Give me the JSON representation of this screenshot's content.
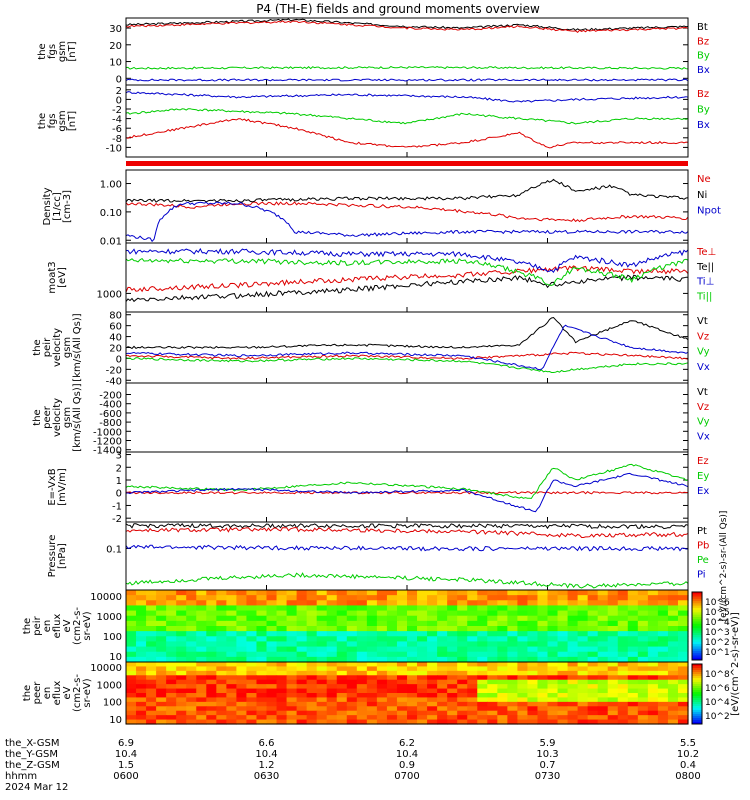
{
  "title": "P4 (TH-E) fields and ground moments overview",
  "colors": {
    "black": "#000000",
    "red": "#dd0000",
    "green": "#00cc00",
    "blue": "#0000cc"
  },
  "colorbar": {
    "label": "[eV/(cm^2-s)-sr-eV)]",
    "label_overlap": "[eV/(cm^2-s)-sr-(All Qs)]",
    "ticks_top": [
      "10^6",
      "10^5",
      "10^4",
      "10^3",
      "10^2",
      "10^1"
    ],
    "ticks_bottom": [
      "10^8",
      "10^6",
      "10^4",
      "10^2"
    ]
  },
  "orbit": {
    "rows": [
      {
        "label": "the_X-GSM",
        "values": [
          "6.9",
          "6.6",
          "6.2",
          "5.9",
          "5.5"
        ]
      },
      {
        "label": "the_Y-GSM",
        "values": [
          "10.4",
          "10.4",
          "10.4",
          "10.3",
          "10.2"
        ]
      },
      {
        "label": "the_Z-GSM",
        "values": [
          "1.5",
          "1.2",
          "0.9",
          "0.7",
          "0.4"
        ]
      },
      {
        "label": "hhmm",
        "values": [
          "0600",
          "0630",
          "0700",
          "0730",
          "0800"
        ]
      }
    ],
    "date": "2024 Mar 12"
  },
  "chart_data": [
    {
      "id": "p1",
      "type": "line",
      "ylabel": [
        "the",
        "fgs",
        "gsm",
        "[nT]"
      ],
      "ylim": [
        -4,
        36
      ],
      "yticks": [
        "30",
        "20",
        "10",
        "0"
      ],
      "ytickvals": [
        30,
        20,
        10,
        0
      ],
      "series": [
        {
          "name": "Bt",
          "color": "#000000",
          "x": [
            0,
            0.1,
            0.2,
            0.3,
            0.4,
            0.5,
            0.6,
            0.7,
            0.8,
            0.9,
            1
          ],
          "values": [
            32,
            33,
            34,
            35,
            33,
            31,
            30,
            32,
            29,
            30,
            31
          ]
        },
        {
          "name": "Bz",
          "color": "#dd0000",
          "x": [
            0,
            0.1,
            0.2,
            0.3,
            0.4,
            0.5,
            0.6,
            0.7,
            0.8,
            0.9,
            1
          ],
          "values": [
            31,
            32,
            33,
            34,
            32,
            30,
            29,
            31,
            28,
            29,
            30
          ]
        },
        {
          "name": "By",
          "color": "#00cc00",
          "x": [
            0,
            0.5,
            1
          ],
          "values": [
            6,
            6.5,
            6
          ]
        },
        {
          "name": "Bx",
          "color": "#0000cc",
          "x": [
            0,
            0.5,
            1
          ],
          "values": [
            -1,
            -1,
            -1
          ]
        }
      ]
    },
    {
      "id": "p2",
      "type": "line",
      "ylabel": [
        "the",
        "fgs",
        "gsm",
        "[nT]"
      ],
      "ylim": [
        -12,
        3
      ],
      "yticks": [
        "2",
        "0",
        "-2",
        "-4",
        "-6",
        "-8",
        "-10"
      ],
      "ytickvals": [
        2,
        0,
        -2,
        -4,
        -6,
        -8,
        -10
      ],
      "series": [
        {
          "name": "Bz",
          "color": "#dd0000",
          "x": [
            0,
            0.1,
            0.2,
            0.3,
            0.4,
            0.5,
            0.6,
            0.7,
            0.75,
            0.8,
            0.9,
            1
          ],
          "values": [
            -8,
            -6,
            -4,
            -6,
            -9,
            -10,
            -9,
            -7,
            -10,
            -9,
            -9,
            -9
          ]
        },
        {
          "name": "By",
          "color": "#00cc00",
          "x": [
            0,
            0.1,
            0.2,
            0.3,
            0.4,
            0.5,
            0.6,
            0.7,
            0.8,
            0.9,
            1
          ],
          "values": [
            -3,
            -2,
            -2.5,
            -3,
            -4,
            -5,
            -3,
            -4,
            -5,
            -4,
            -4
          ]
        },
        {
          "name": "Bx",
          "color": "#0000cc",
          "x": [
            0,
            0.2,
            0.4,
            0.6,
            0.7,
            0.8,
            1
          ],
          "values": [
            1.5,
            0.5,
            1,
            0.5,
            -0.5,
            0,
            0.5
          ]
        }
      ]
    },
    {
      "id": "p3",
      "type": "line",
      "ylabel": [
        "Density",
        "[1/cc]",
        "[cm-3]"
      ],
      "ylim": [
        0.008,
        3
      ],
      "scale": "log",
      "yticks": [
        "1.00",
        "0.10",
        "0.01"
      ],
      "ytickvals": [
        1,
        0.1,
        0.01
      ],
      "series": [
        {
          "name": "Ne",
          "color": "#dd0000",
          "x": [
            0,
            0.12,
            0.2,
            0.3,
            0.5,
            0.7,
            0.8,
            0.9,
            1
          ],
          "values": [
            0.2,
            0.15,
            0.2,
            0.2,
            0.15,
            0.06,
            0.05,
            0.07,
            0.06
          ]
        },
        {
          "name": "Ni",
          "color": "#000000",
          "x": [
            0,
            0.2,
            0.4,
            0.6,
            0.7,
            0.76,
            0.8,
            0.86,
            0.9,
            1
          ],
          "values": [
            0.25,
            0.25,
            0.3,
            0.3,
            0.4,
            1.3,
            0.5,
            0.8,
            0.4,
            0.3
          ]
        },
        {
          "name": "Npot",
          "color": "#0000cc",
          "x": [
            0,
            0.05,
            0.1,
            0.2,
            0.3,
            0.4,
            0.6,
            0.8,
            1
          ],
          "values": [
            0.015,
            0.01,
            0.2,
            0.2,
            0.02,
            0.015,
            0.02,
            0.02,
            0.02
          ]
        }
      ]
    },
    {
      "id": "p4",
      "type": "line",
      "ylabel": [
        "moat3",
        "[eV]"
      ],
      "ylim": [
        400,
        12000
      ],
      "scale": "log",
      "yticks": [
        "1000"
      ],
      "ytickvals": [
        1000
      ],
      "series": [
        {
          "name": "Te⊥",
          "color": "#dd0000",
          "x": [
            0,
            0.2,
            0.4,
            0.6,
            0.7,
            0.8,
            0.9,
            1
          ],
          "values": [
            1200,
            1500,
            2000,
            2500,
            3000,
            3500,
            3000,
            3000
          ]
        },
        {
          "name": "Te||",
          "color": "#000000",
          "x": [
            0,
            0.2,
            0.4,
            0.6,
            0.7,
            0.75,
            0.8,
            0.9,
            1
          ],
          "values": [
            700,
            900,
            1200,
            1800,
            2200,
            1500,
            1800,
            2200,
            2000
          ]
        },
        {
          "name": "Ti⊥",
          "color": "#0000cc",
          "x": [
            0,
            0.2,
            0.4,
            0.6,
            0.76,
            0.8,
            0.9,
            1
          ],
          "values": [
            8000,
            8000,
            7000,
            7000,
            3000,
            6000,
            4000,
            8000
          ]
        },
        {
          "name": "Ti||",
          "color": "#00cc00",
          "x": [
            0,
            0.2,
            0.4,
            0.6,
            0.76,
            0.8,
            0.9,
            1
          ],
          "values": [
            5000,
            5000,
            4500,
            5000,
            1500,
            3500,
            2000,
            5000
          ]
        }
      ]
    },
    {
      "id": "p5",
      "type": "line",
      "ylabel": [
        "the",
        "peir",
        "velocity",
        "gsm",
        "[km/s(All Qs)]"
      ],
      "ylim": [
        -45,
        85
      ],
      "yticks": [
        "80",
        "60",
        "40",
        "20",
        "0",
        "-20",
        "-40"
      ],
      "ytickvals": [
        80,
        60,
        40,
        20,
        0,
        -20,
        -40
      ],
      "series": [
        {
          "name": "Vt",
          "color": "#000000",
          "x": [
            0,
            0.2,
            0.4,
            0.6,
            0.7,
            0.76,
            0.8,
            0.9,
            1
          ],
          "values": [
            20,
            20,
            25,
            20,
            25,
            75,
            30,
            70,
            35
          ]
        },
        {
          "name": "Vz",
          "color": "#dd0000",
          "x": [
            0,
            0.2,
            0.4,
            0.6,
            0.8,
            1
          ],
          "values": [
            5,
            0,
            5,
            0,
            10,
            0
          ]
        },
        {
          "name": "Vy",
          "color": "#00cc00",
          "x": [
            0,
            0.2,
            0.4,
            0.6,
            0.76,
            0.8,
            0.9,
            1
          ],
          "values": [
            0,
            -5,
            0,
            -5,
            -25,
            -20,
            -10,
            -10
          ]
        },
        {
          "name": "Vx",
          "color": "#0000cc",
          "x": [
            0,
            0.2,
            0.4,
            0.6,
            0.74,
            0.78,
            0.9,
            1
          ],
          "values": [
            10,
            5,
            10,
            5,
            -20,
            60,
            20,
            10
          ]
        }
      ]
    },
    {
      "id": "p6",
      "type": "line",
      "ylabel": [
        "the",
        "peer",
        "velocity",
        "gsm",
        "[km/s(All Qs)]"
      ],
      "ylim": [
        -1450,
        50
      ],
      "yticks": [
        "-200",
        "-400",
        "-600",
        "-800",
        "-1000",
        "-1200",
        "-1400"
      ],
      "ytickvals": [
        -200,
        -400,
        -600,
        -800,
        -1000,
        -1200,
        -1400
      ],
      "series": [
        {
          "name": "Vt",
          "color": "#000000",
          "x": [],
          "values": []
        },
        {
          "name": "Vz",
          "color": "#dd0000",
          "x": [],
          "values": []
        },
        {
          "name": "Vy",
          "color": "#00cc00",
          "x": [],
          "values": []
        },
        {
          "name": "Vx",
          "color": "#0000cc",
          "x": [],
          "values": []
        }
      ]
    },
    {
      "id": "p7",
      "type": "line",
      "ylabel": [
        "E=-VxB",
        "[mV/m]"
      ],
      "ylim": [
        -2.3,
        3.2
      ],
      "yticks": [
        "3",
        "2",
        "1",
        "0",
        "-1",
        "-2"
      ],
      "ytickvals": [
        3,
        2,
        1,
        0,
        -1,
        -2
      ],
      "series": [
        {
          "name": "Ez",
          "color": "#dd0000",
          "x": [
            0,
            0.5,
            1
          ],
          "values": [
            0,
            0,
            0
          ]
        },
        {
          "name": "Ey",
          "color": "#00cc00",
          "x": [
            0,
            0.2,
            0.4,
            0.6,
            0.72,
            0.76,
            0.8,
            0.9,
            1
          ],
          "values": [
            0.5,
            0.2,
            0.8,
            0.3,
            -0.5,
            2,
            1,
            2.2,
            1
          ]
        },
        {
          "name": "Ex",
          "color": "#0000cc",
          "x": [
            0,
            0.2,
            0.4,
            0.6,
            0.73,
            0.76,
            0.8,
            0.9,
            1
          ],
          "values": [
            0,
            0.3,
            0,
            0.2,
            -1.5,
            1,
            0.5,
            1.5,
            0.5
          ]
        }
      ]
    },
    {
      "id": "p8",
      "type": "line",
      "ylabel": [
        "Pressure",
        "[nPa]"
      ],
      "ylim": [
        0.008,
        0.5
      ],
      "scale": "log",
      "yticks": [
        "0.1"
      ],
      "ytickvals": [
        0.1
      ],
      "series": [
        {
          "name": "Pt",
          "color": "#000000",
          "x": [
            0,
            0.5,
            1
          ],
          "values": [
            0.4,
            0.4,
            0.38
          ]
        },
        {
          "name": "Pb",
          "color": "#dd0000",
          "x": [
            0,
            0.3,
            0.6,
            0.8,
            1
          ],
          "values": [
            0.3,
            0.32,
            0.28,
            0.22,
            0.24
          ]
        },
        {
          "name": "Pe",
          "color": "#00cc00",
          "x": [
            0,
            0.3,
            0.6,
            0.8,
            1
          ],
          "values": [
            0.012,
            0.02,
            0.015,
            0.01,
            0.012
          ]
        },
        {
          "name": "Pi",
          "color": "#0000cc",
          "x": [
            0,
            0.5,
            1
          ],
          "values": [
            0.11,
            0.1,
            0.1
          ]
        }
      ]
    },
    {
      "id": "p9",
      "type": "heatmap",
      "ylabel": [
        "the",
        "peir",
        "en",
        "eflux",
        "eV",
        "(cm2-s-",
        "sr-eV)"
      ],
      "ylim": [
        5,
        20000
      ],
      "scale": "log",
      "yticks": [
        "10000",
        "1000",
        "100",
        "10"
      ],
      "ytickvals": [
        10000,
        1000,
        100,
        10
      ]
    },
    {
      "id": "p10",
      "type": "heatmap",
      "ylabel": [
        "the",
        "peer",
        "en",
        "eflux",
        "eV",
        "(cm2-s-",
        "sr-eV)"
      ],
      "ylim": [
        5,
        20000
      ],
      "scale": "log",
      "yticks": [
        "10000",
        "1000",
        "100",
        "10"
      ],
      "ytickvals": [
        10000,
        1000,
        100,
        10
      ]
    }
  ]
}
